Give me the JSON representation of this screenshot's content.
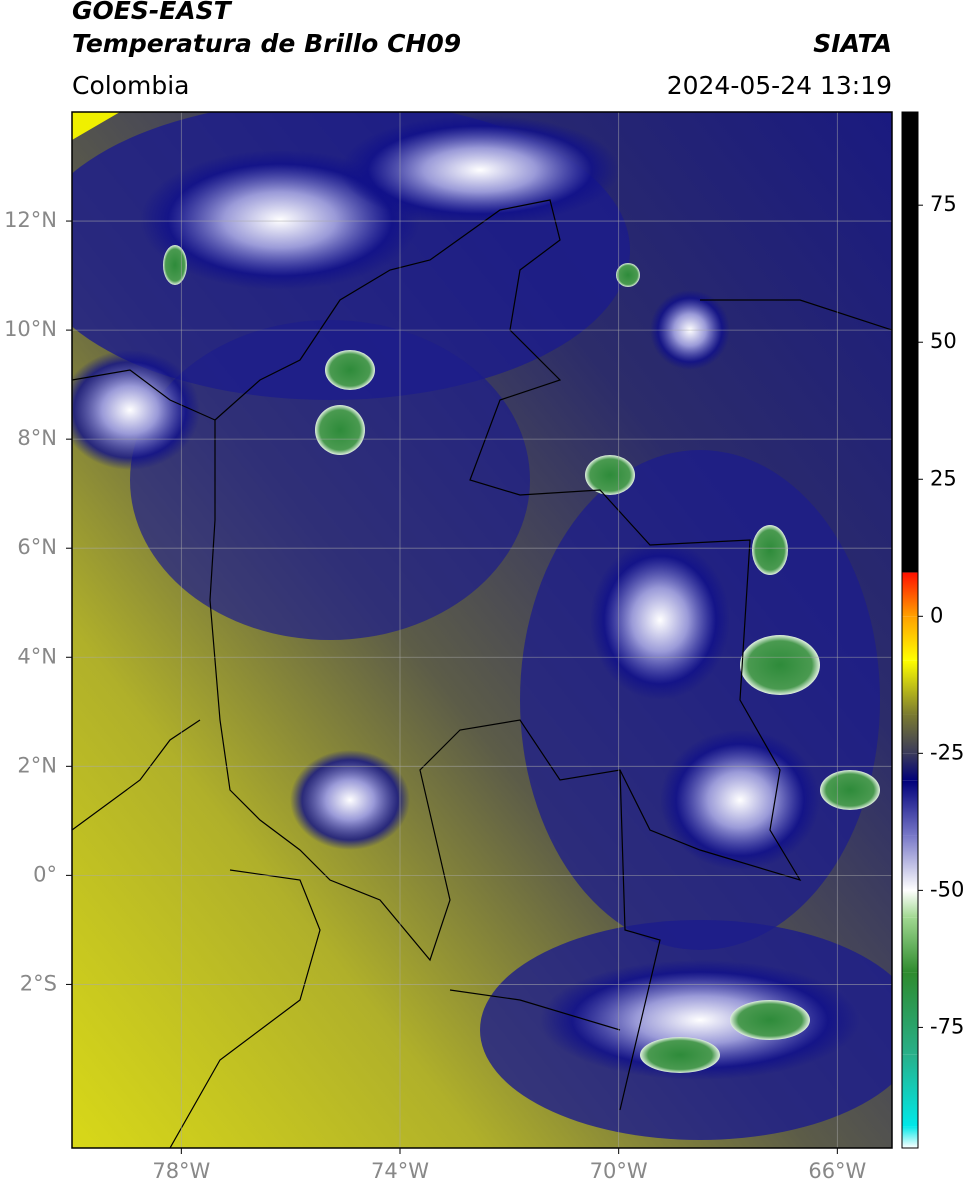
{
  "header": {
    "satellite": "GOES-EAST",
    "product": "Temperatura de Brillo CH09",
    "source": "SIATA",
    "region": "Colombia",
    "timestamp": "2024-05-24 13:19"
  },
  "map": {
    "xlim": [
      -80,
      -65
    ],
    "ylim": [
      -5,
      14
    ],
    "grid": true,
    "xticks": [
      {
        "value": -78,
        "label": "78°W"
      },
      {
        "value": -74,
        "label": "74°W"
      },
      {
        "value": -70,
        "label": "70°W"
      },
      {
        "value": -66,
        "label": "66°W"
      }
    ],
    "yticks": [
      {
        "value": 12,
        "label": "12°N"
      },
      {
        "value": 10,
        "label": "10°N"
      },
      {
        "value": 8,
        "label": "8°N"
      },
      {
        "value": 6,
        "label": "6°N"
      },
      {
        "value": 4,
        "label": "4°N"
      },
      {
        "value": 2,
        "label": "2°N"
      },
      {
        "value": 0,
        "label": "0°"
      },
      {
        "value": -2,
        "label": "2°S"
      }
    ]
  },
  "colorbar": {
    "lim": [
      -97,
      92
    ],
    "ticks": [
      75,
      50,
      25,
      0,
      -25,
      -50,
      -75
    ],
    "stops": [
      {
        "value": -97,
        "color": "#ffffff"
      },
      {
        "value": -93,
        "color": "#00e8e8"
      },
      {
        "value": -80,
        "color": "#28b08a"
      },
      {
        "value": -65,
        "color": "#2e8b2e"
      },
      {
        "value": -55,
        "color": "#a0d890"
      },
      {
        "value": -50,
        "color": "#ffffff"
      },
      {
        "value": -40,
        "color": "#7878c8"
      },
      {
        "value": -30,
        "color": "#00007a"
      },
      {
        "value": -25,
        "color": "#3a3a5a"
      },
      {
        "value": -18,
        "color": "#7a7a30"
      },
      {
        "value": -8,
        "color": "#ffff00"
      },
      {
        "value": 0,
        "color": "#ffa000"
      },
      {
        "value": 8,
        "color": "#ff1000"
      },
      {
        "value": 8,
        "color": "#000000"
      },
      {
        "value": 92,
        "color": "#000000"
      }
    ]
  }
}
